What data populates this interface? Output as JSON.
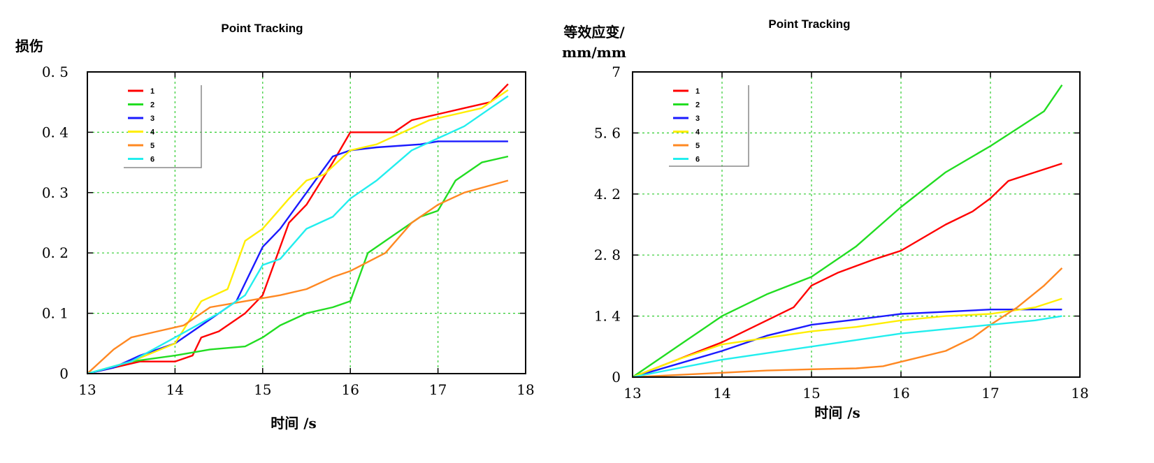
{
  "chart_data": [
    {
      "type": "line",
      "title": "Point Tracking",
      "ylabel": "损伤",
      "xlabel": "时间 /s",
      "xlim": [
        13,
        18
      ],
      "ylim": [
        0,
        0.5
      ],
      "x_ticks": [
        13,
        14,
        15,
        16,
        17,
        18
      ],
      "y_ticks": [
        0,
        0.1,
        0.2,
        0.3,
        0.4,
        0.5
      ],
      "x_tick_labels": [
        "13",
        "14",
        "15",
        "16",
        "17",
        "18"
      ],
      "y_tick_labels": [
        "0",
        "0. 1",
        "0. 2",
        "0. 3",
        "0. 4",
        "0. 5"
      ],
      "grid": true,
      "legend_position": "top-left",
      "series": [
        {
          "name": "1",
          "color": "#ff0000",
          "x": [
            13,
            13.3,
            13.6,
            14.0,
            14.2,
            14.3,
            14.5,
            14.8,
            15.0,
            15.3,
            15.5,
            15.8,
            16.0,
            16.5,
            16.7,
            17.0,
            17.3,
            17.6,
            17.8
          ],
          "y": [
            0,
            0.01,
            0.02,
            0.02,
            0.03,
            0.06,
            0.07,
            0.1,
            0.13,
            0.25,
            0.28,
            0.35,
            0.4,
            0.4,
            0.42,
            0.43,
            0.44,
            0.45,
            0.48
          ]
        },
        {
          "name": "2",
          "color": "#22dd22",
          "x": [
            13,
            13.5,
            14.0,
            14.4,
            14.8,
            15.0,
            15.2,
            15.5,
            15.8,
            16.0,
            16.2,
            16.5,
            16.8,
            17.0,
            17.2,
            17.5,
            17.8
          ],
          "y": [
            0,
            0.02,
            0.03,
            0.04,
            0.045,
            0.06,
            0.08,
            0.1,
            0.11,
            0.12,
            0.2,
            0.23,
            0.26,
            0.27,
            0.32,
            0.35,
            0.36
          ]
        },
        {
          "name": "3",
          "color": "#1a1aff",
          "x": [
            13,
            13.3,
            13.6,
            14.0,
            14.2,
            14.4,
            14.7,
            14.8,
            15.0,
            15.2,
            15.5,
            15.8,
            16.0,
            16.3,
            16.8,
            17.0,
            17.3,
            17.8
          ],
          "y": [
            0,
            0.01,
            0.03,
            0.05,
            0.07,
            0.09,
            0.12,
            0.15,
            0.21,
            0.24,
            0.3,
            0.36,
            0.37,
            0.375,
            0.38,
            0.385,
            0.385,
            0.385
          ]
        },
        {
          "name": "4",
          "color": "#ffee00",
          "x": [
            13,
            13.5,
            14.0,
            14.3,
            14.6,
            14.8,
            15.0,
            15.3,
            15.5,
            15.7,
            16.0,
            16.3,
            16.6,
            16.9,
            17.2,
            17.5,
            17.8
          ],
          "y": [
            0,
            0.02,
            0.05,
            0.12,
            0.14,
            0.22,
            0.24,
            0.29,
            0.32,
            0.33,
            0.37,
            0.38,
            0.4,
            0.42,
            0.43,
            0.44,
            0.47
          ]
        },
        {
          "name": "5",
          "color": "#ff8822",
          "x": [
            13,
            13.3,
            13.5,
            13.8,
            14.1,
            14.4,
            14.8,
            15.2,
            15.5,
            15.8,
            16.0,
            16.4,
            16.7,
            17.0,
            17.3,
            17.8
          ],
          "y": [
            0,
            0.04,
            0.06,
            0.07,
            0.08,
            0.11,
            0.12,
            0.13,
            0.14,
            0.16,
            0.17,
            0.2,
            0.25,
            0.28,
            0.3,
            0.32
          ]
        },
        {
          "name": "6",
          "color": "#22eeee",
          "x": [
            13,
            13.5,
            14.0,
            14.5,
            14.8,
            15.0,
            15.2,
            15.5,
            15.8,
            16.0,
            16.3,
            16.7,
            17.0,
            17.3,
            17.6,
            17.8
          ],
          "y": [
            0,
            0.02,
            0.06,
            0.1,
            0.13,
            0.18,
            0.19,
            0.24,
            0.26,
            0.29,
            0.32,
            0.37,
            0.39,
            0.41,
            0.44,
            0.46
          ]
        }
      ]
    },
    {
      "type": "line",
      "title": "Point Tracking",
      "ylabel": "等效应变/",
      "ylabel_unit": "mm/mm",
      "xlabel": "时间 /s",
      "xlim": [
        13,
        18
      ],
      "ylim": [
        0,
        7
      ],
      "x_ticks": [
        13,
        14,
        15,
        16,
        17,
        18
      ],
      "y_ticks": [
        0,
        1.4,
        2.8,
        4.2,
        5.6,
        7
      ],
      "x_tick_labels": [
        "13",
        "14",
        "15",
        "16",
        "17",
        "18"
      ],
      "y_tick_labels": [
        "0",
        "1. 4",
        "2. 8",
        "4. 2",
        "5. 6",
        "7"
      ],
      "grid": true,
      "legend_position": "top-left",
      "series": [
        {
          "name": "1",
          "color": "#ff0000",
          "x": [
            13,
            13.5,
            14.0,
            14.5,
            14.8,
            15.0,
            15.3,
            15.7,
            16.0,
            16.5,
            16.8,
            17.0,
            17.2,
            17.5,
            17.8
          ],
          "y": [
            0,
            0.4,
            0.8,
            1.3,
            1.6,
            2.1,
            2.4,
            2.7,
            2.9,
            3.5,
            3.8,
            4.1,
            4.5,
            4.7,
            4.9
          ]
        },
        {
          "name": "2",
          "color": "#22dd22",
          "x": [
            13,
            13.5,
            14.0,
            14.5,
            15.0,
            15.5,
            16.0,
            16.5,
            17.0,
            17.3,
            17.6,
            17.8
          ],
          "y": [
            0,
            0.7,
            1.4,
            1.9,
            2.3,
            3.0,
            3.9,
            4.7,
            5.3,
            5.7,
            6.1,
            6.7
          ]
        },
        {
          "name": "3",
          "color": "#1a1aff",
          "x": [
            13,
            13.5,
            14.0,
            14.5,
            15.0,
            15.5,
            16.0,
            16.5,
            17.0,
            17.8
          ],
          "y": [
            0,
            0.3,
            0.6,
            0.95,
            1.2,
            1.32,
            1.45,
            1.5,
            1.55,
            1.55
          ]
        },
        {
          "name": "4",
          "color": "#ffee00",
          "x": [
            13,
            13.5,
            14.0,
            14.5,
            15.0,
            15.5,
            16.0,
            16.5,
            17.0,
            17.5,
            17.8
          ],
          "y": [
            0,
            0.4,
            0.75,
            0.9,
            1.05,
            1.15,
            1.3,
            1.4,
            1.45,
            1.6,
            1.8
          ]
        },
        {
          "name": "5",
          "color": "#ff8822",
          "x": [
            13,
            13.5,
            14.0,
            14.5,
            15.0,
            15.5,
            15.8,
            16.0,
            16.5,
            16.8,
            17.0,
            17.3,
            17.6,
            17.8
          ],
          "y": [
            0,
            0.05,
            0.1,
            0.15,
            0.18,
            0.2,
            0.25,
            0.35,
            0.6,
            0.9,
            1.2,
            1.6,
            2.1,
            2.5
          ]
        },
        {
          "name": "6",
          "color": "#22eeee",
          "x": [
            13,
            13.5,
            14.0,
            14.5,
            15.0,
            15.5,
            16.0,
            16.5,
            17.0,
            17.5,
            17.8
          ],
          "y": [
            0,
            0.2,
            0.4,
            0.55,
            0.7,
            0.85,
            1.0,
            1.1,
            1.2,
            1.3,
            1.4
          ]
        }
      ]
    }
  ]
}
